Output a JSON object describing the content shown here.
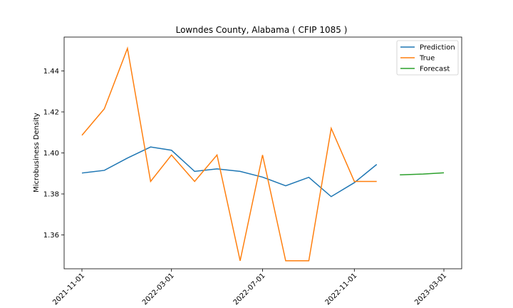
{
  "chart_data": {
    "type": "line",
    "title": "Lowndes County, Alabama ( CFIP 1085 )",
    "xlabel": "",
    "ylabel": "Microbusiness Density",
    "x_tick_labels": [
      "2021-11-01",
      "2022-03-01",
      "2022-07-01",
      "2022-11-01",
      "2023-03-01"
    ],
    "y_tick_labels": [
      "1.36",
      "1.38",
      "1.40",
      "1.42",
      "1.44"
    ],
    "ylim": [
      1.3435,
      1.4565
    ],
    "grid": false,
    "legend_position": "top-right",
    "series": [
      {
        "name": "Prediction",
        "color": "#1f77b4",
        "x": [
          "2021-11-01",
          "2021-12-01",
          "2022-01-01",
          "2022-02-01",
          "2022-03-01",
          "2022-04-01",
          "2022-05-01",
          "2022-06-01",
          "2022-07-01",
          "2022-08-01",
          "2022-09-01",
          "2022-10-01",
          "2022-11-01",
          "2022-12-01"
        ],
        "values": [
          1.3902,
          1.3915,
          1.3975,
          1.4029,
          1.4013,
          1.391,
          1.3922,
          1.391,
          1.3882,
          1.384,
          1.3881,
          1.3787,
          1.3855,
          1.3944
        ]
      },
      {
        "name": "True",
        "color": "#ff7f0e",
        "x": [
          "2021-11-01",
          "2021-12-01",
          "2022-01-01",
          "2022-02-01",
          "2022-03-01",
          "2022-04-01",
          "2022-05-01",
          "2022-06-01",
          "2022-07-01",
          "2022-08-01",
          "2022-09-01",
          "2022-10-01",
          "2022-11-01",
          "2022-12-01"
        ],
        "values": [
          1.4086,
          1.4215,
          1.451,
          1.3861,
          1.399,
          1.3861,
          1.399,
          1.3474,
          1.399,
          1.3474,
          1.3474,
          1.412,
          1.3861,
          1.3861
        ]
      },
      {
        "name": "Forecast",
        "color": "#2ca02c",
        "x": [
          "2023-01-01",
          "2023-02-01",
          "2023-03-01"
        ],
        "values": [
          1.3893,
          1.3897,
          1.3903
        ]
      }
    ]
  }
}
